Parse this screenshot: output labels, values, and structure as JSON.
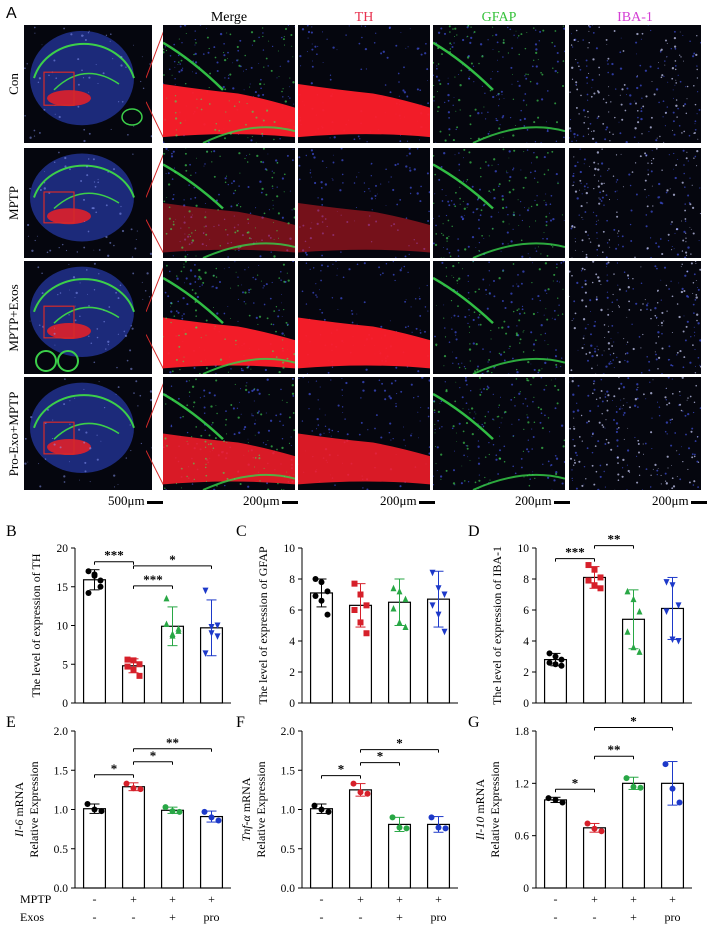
{
  "figure_A": {
    "panel_letter": "A",
    "columns": [
      "Merge",
      "TH",
      "GFAP",
      "IBA-1"
    ],
    "column_colors": [
      "#000000",
      "#e8324f",
      "#35c23a",
      "#d43fd4"
    ],
    "rows": [
      "Con",
      "MPTP",
      "MPTP+Exos",
      "Pro-Exo+MPTP"
    ],
    "scalebars": [
      "500μm",
      "200μm",
      "200μm",
      "200μm",
      "200μm"
    ]
  },
  "chart_data": [
    {
      "panel": "B",
      "type": "bar",
      "title": "",
      "ylabel": "The level of expression of TH",
      "ylim": [
        0,
        20
      ],
      "yticks": [
        0,
        5,
        10,
        15,
        20
      ],
      "values": [
        15.9,
        4.8,
        9.9,
        9.7
      ],
      "errors": [
        1.3,
        0.9,
        2.5,
        3.6
      ],
      "points": [
        [
          17.0,
          16.4,
          15.0,
          14.2,
          16.6,
          15.8
        ],
        [
          5.6,
          4.3,
          3.5,
          4.7,
          5.5,
          5.0
        ],
        [
          13.5,
          8.9,
          9.6,
          10.2,
          8.7,
          9.3
        ],
        [
          14.5,
          9.8,
          10.0,
          6.4,
          9.0,
          8.6
        ]
      ],
      "point_colors": [
        "#000000",
        "#d6202a",
        "#28a745",
        "#1d39c9"
      ],
      "point_shapes": [
        "circle",
        "square",
        "triangle",
        "tri-down"
      ],
      "significance": [
        {
          "from": 0,
          "to": 1,
          "label": "***"
        },
        {
          "from": 1,
          "to": 2,
          "label": "***"
        },
        {
          "from": 1,
          "to": 3,
          "label": "*"
        }
      ]
    },
    {
      "panel": "C",
      "type": "bar",
      "title": "",
      "ylabel": "The level of expression of GFAP",
      "ylim": [
        0,
        10
      ],
      "yticks": [
        0,
        2,
        4,
        6,
        8,
        10
      ],
      "values": [
        7.1,
        6.3,
        6.5,
        6.7
      ],
      "errors": [
        0.9,
        1.4,
        1.5,
        1.8
      ],
      "points": [
        [
          8.0,
          7.8,
          7.2,
          6.9,
          6.6,
          5.7
        ],
        [
          7.7,
          7.0,
          6.3,
          6.0,
          5.2,
          4.5
        ],
        [
          7.4,
          7.2,
          6.7,
          6.1,
          5.2,
          4.9
        ],
        [
          8.4,
          7.4,
          7.0,
          6.3,
          5.7,
          4.6
        ]
      ],
      "point_colors": [
        "#000000",
        "#d6202a",
        "#28a745",
        "#1d39c9"
      ],
      "point_shapes": [
        "circle",
        "square",
        "triangle",
        "tri-down"
      ],
      "significance": []
    },
    {
      "panel": "D",
      "type": "bar",
      "title": "",
      "ylabel": "The level of expression of IBA-1",
      "ylim": [
        0,
        10
      ],
      "yticks": [
        0,
        2,
        4,
        6,
        8,
        10
      ],
      "values": [
        2.8,
        8.1,
        5.4,
        6.1
      ],
      "errors": [
        0.4,
        0.7,
        1.9,
        2.0
      ],
      "points": [
        [
          3.2,
          3.0,
          2.8,
          2.6,
          2.5,
          2.4
        ],
        [
          8.9,
          8.6,
          8.1,
          7.9,
          7.6,
          7.4
        ],
        [
          7.2,
          6.7,
          5.9,
          4.6,
          3.6,
          3.3
        ],
        [
          7.8,
          7.6,
          6.3,
          5.9,
          4.1,
          4.0
        ]
      ],
      "point_colors": [
        "#000000",
        "#d6202a",
        "#28a745",
        "#1d39c9"
      ],
      "point_shapes": [
        "circle",
        "square",
        "triangle",
        "tri-down"
      ],
      "significance": [
        {
          "from": 0,
          "to": 1,
          "label": "***"
        },
        {
          "from": 1,
          "to": 2,
          "label": "**"
        }
      ]
    },
    {
      "panel": "E",
      "type": "bar",
      "title": "",
      "ylabel_italic": "Il-6",
      "ylabel_rest": " mRNA",
      "ylabel2": "Relative Expression",
      "ylim": [
        0,
        2.0
      ],
      "yticks": [
        0.0,
        0.5,
        1.0,
        1.5,
        2.0
      ],
      "ytick_labels": [
        "0.0",
        "0.5",
        "1.0",
        "1.5",
        "2.0"
      ],
      "values": [
        1.01,
        1.29,
        0.99,
        0.91
      ],
      "errors": [
        0.06,
        0.05,
        0.04,
        0.07
      ],
      "points": [
        [
          1.07,
          1.0,
          0.98
        ],
        [
          1.33,
          1.27,
          1.26
        ],
        [
          1.03,
          0.98,
          0.97
        ],
        [
          0.97,
          0.9,
          0.86
        ]
      ],
      "point_colors": [
        "#000000",
        "#d6202a",
        "#28a745",
        "#1d39c9"
      ],
      "point_shapes": [
        "circle",
        "circle",
        "circle",
        "circle"
      ],
      "significance": [
        {
          "from": 0,
          "to": 1,
          "label": "*"
        },
        {
          "from": 1,
          "to": 2,
          "label": "*"
        },
        {
          "from": 1,
          "to": 3,
          "label": "**"
        }
      ]
    },
    {
      "panel": "F",
      "type": "bar",
      "title": "",
      "ylabel_italic": "Tnf-α",
      "ylabel_rest": " mRNA",
      "ylabel2": "Relative Expression",
      "ylim": [
        0,
        2.0
      ],
      "yticks": [
        0.0,
        0.5,
        1.0,
        1.5,
        2.0
      ],
      "ytick_labels": [
        "0.0",
        "0.5",
        "1.0",
        "1.5",
        "2.0"
      ],
      "values": [
        1.01,
        1.25,
        0.81,
        0.81
      ],
      "errors": [
        0.06,
        0.08,
        0.09,
        0.1
      ],
      "points": [
        [
          1.05,
          1.0,
          0.97
        ],
        [
          1.33,
          1.22,
          1.2
        ],
        [
          0.9,
          0.77,
          0.76
        ],
        [
          0.9,
          0.77,
          0.76
        ]
      ],
      "point_colors": [
        "#000000",
        "#d6202a",
        "#28a745",
        "#1d39c9"
      ],
      "point_shapes": [
        "circle",
        "circle",
        "circle",
        "circle"
      ],
      "significance": [
        {
          "from": 0,
          "to": 1,
          "label": "*"
        },
        {
          "from": 1,
          "to": 2,
          "label": "*"
        },
        {
          "from": 1,
          "to": 3,
          "label": "*"
        }
      ]
    },
    {
      "panel": "G",
      "type": "bar",
      "title": "",
      "ylabel_italic": "Il-10",
      "ylabel_rest": " mRNA",
      "ylabel2": "Relative Expression",
      "ylim": [
        0,
        1.8
      ],
      "yticks": [
        0.0,
        0.6,
        1.2,
        1.8
      ],
      "ytick_labels": [
        "0",
        "0.6",
        "1.2",
        "1.8"
      ],
      "values": [
        1.01,
        0.69,
        1.2,
        1.2
      ],
      "errors": [
        0.03,
        0.05,
        0.07,
        0.25
      ],
      "points": [
        [
          1.03,
          1.01,
          0.98
        ],
        [
          0.74,
          0.68,
          0.65
        ],
        [
          1.26,
          1.16,
          1.15
        ],
        [
          1.42,
          1.14,
          0.98
        ]
      ],
      "point_colors": [
        "#000000",
        "#d6202a",
        "#28a745",
        "#1d39c9"
      ],
      "point_shapes": [
        "circle",
        "circle",
        "circle",
        "circle"
      ],
      "significance": [
        {
          "from": 0,
          "to": 1,
          "label": "*"
        },
        {
          "from": 1,
          "to": 2,
          "label": "**"
        },
        {
          "from": 1,
          "to": 3,
          "label": "*"
        }
      ]
    }
  ],
  "treatment_table": {
    "labels": [
      "MPTP",
      "Exos"
    ],
    "MPTP": [
      "-",
      "+",
      "+",
      "+"
    ],
    "Exos": [
      "-",
      "-",
      "+",
      "pro"
    ]
  }
}
